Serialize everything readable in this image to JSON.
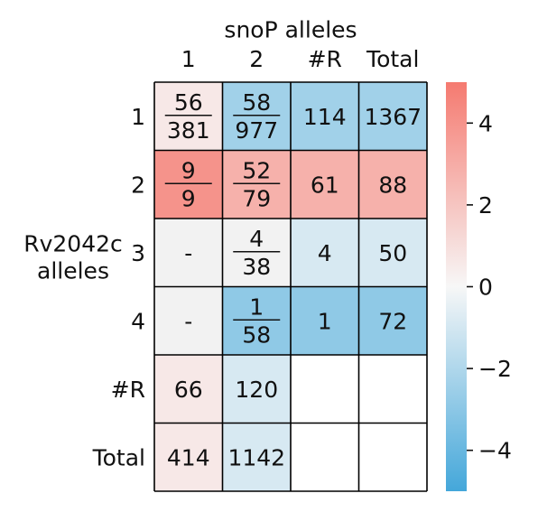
{
  "chart_data": {
    "type": "heatmap",
    "title": "snoP alleles",
    "ylabel": "Rv2042c\nalleles",
    "column_labels": [
      "1",
      "2",
      "#R",
      "Total"
    ],
    "row_labels": [
      "1",
      "2",
      "3",
      "4",
      "#R",
      "Total"
    ],
    "cells": [
      [
        {
          "label": {
            "num": "56",
            "den": "381"
          },
          "value": 0.6
        },
        {
          "label": {
            "num": "58",
            "den": "977"
          },
          "value": -2.4
        },
        {
          "label": "114",
          "value": -2.4
        },
        {
          "label": "1367",
          "value": -2.4
        }
      ],
      [
        {
          "label": {
            "num": "9",
            "den": "9"
          },
          "value": 4.0
        },
        {
          "label": {
            "num": "52",
            "den": "79"
          },
          "value": 2.8
        },
        {
          "label": "61",
          "value": 2.8
        },
        {
          "label": "88",
          "value": 2.8
        }
      ],
      [
        {
          "label": "-",
          "value": null
        },
        {
          "label": {
            "num": "4",
            "den": "38"
          },
          "value": null
        },
        {
          "label": "4",
          "value": -0.9
        },
        {
          "label": "50",
          "value": -0.9
        }
      ],
      [
        {
          "label": "-",
          "value": null
        },
        {
          "label": {
            "num": "1",
            "den": "58"
          },
          "value": -2.9
        },
        {
          "label": "1",
          "value": -2.9
        },
        {
          "label": "72",
          "value": -2.9
        }
      ],
      [
        {
          "label": "66",
          "value": 0.6
        },
        {
          "label": "120",
          "value": -0.9
        },
        {
          "label": "",
          "value": "blank"
        },
        {
          "label": "",
          "value": "blank"
        }
      ],
      [
        {
          "label": "414",
          "value": 0.6
        },
        {
          "label": "1142",
          "value": -0.9
        },
        {
          "label": "",
          "value": "blank"
        },
        {
          "label": "",
          "value": "blank"
        }
      ]
    ],
    "colorbar": {
      "range": [
        -5,
        5
      ],
      "ticks": [
        -4,
        -2,
        0,
        2,
        4
      ],
      "tick_labels": [
        "−4",
        "−2",
        "0",
        "2",
        "4"
      ],
      "colors": {
        "negative": "#44a7da",
        "zero": "#f7f7f7",
        "positive": "#f57a70"
      }
    },
    "null_color": "#f2f2f2",
    "blank_color": "#ffffff",
    "grid": true
  }
}
